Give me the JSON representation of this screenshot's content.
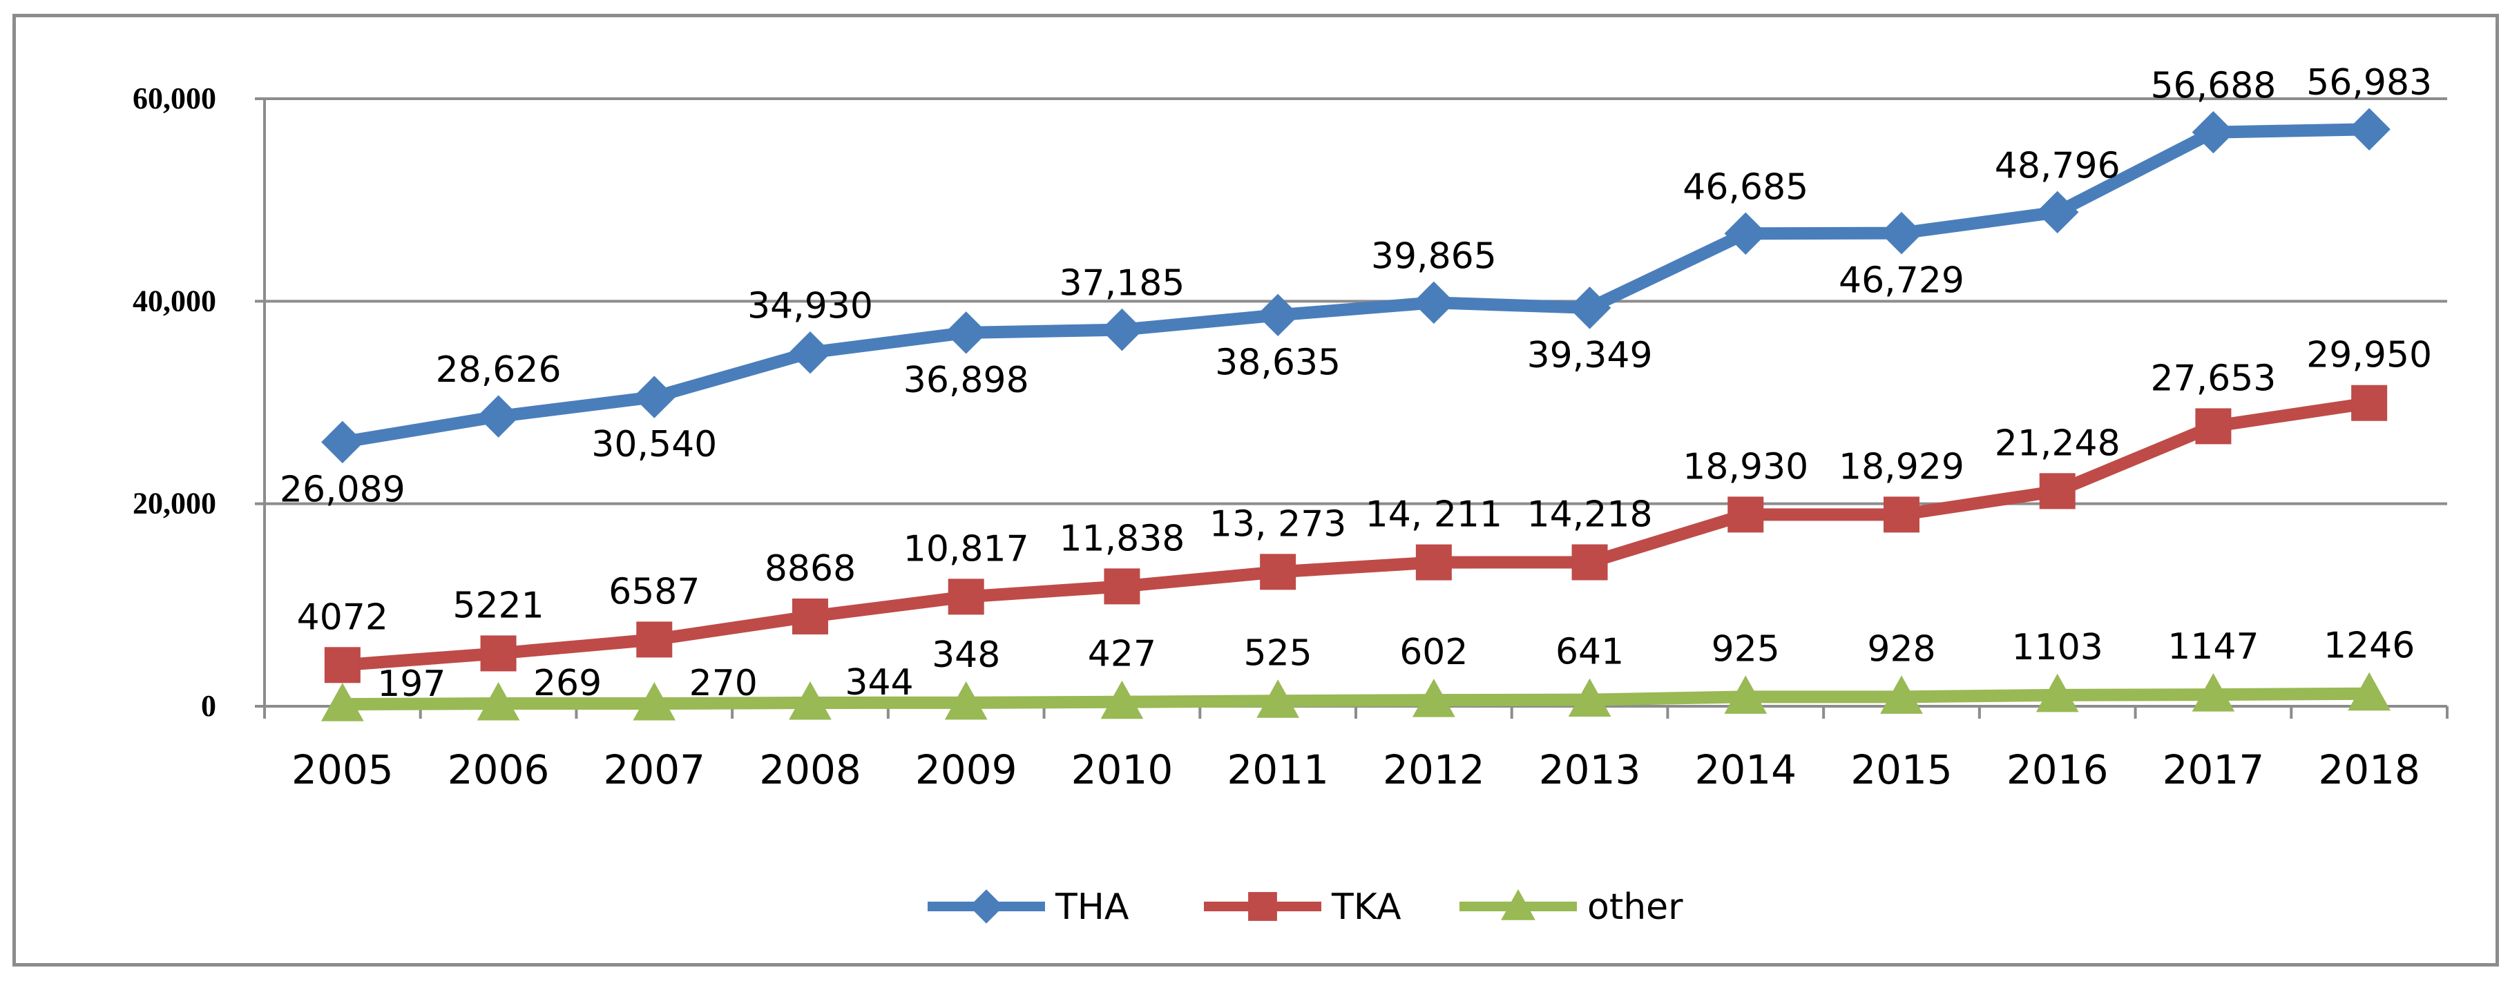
{
  "chart_data": {
    "type": "line",
    "title": "",
    "xlabel": "",
    "ylabel": "",
    "ylim": [
      0,
      60000
    ],
    "yticks": [
      0,
      20000,
      40000,
      60000
    ],
    "ytick_labels": [
      "0",
      "20,000",
      "40,000",
      "60,000"
    ],
    "categories": [
      "2005",
      "2006",
      "2007",
      "2008",
      "2009",
      "2010",
      "2011",
      "2012",
      "2013",
      "2014",
      "2015",
      "2016",
      "2017",
      "2018"
    ],
    "grid": true,
    "legend_position": "bottom",
    "series": [
      {
        "name": "THA",
        "color": "#4a7ebb",
        "marker": "diamond",
        "values": [
          26089,
          28626,
          30540,
          34930,
          36898,
          37185,
          38635,
          39865,
          39349,
          46685,
          46729,
          48796,
          56688,
          56983
        ],
        "labels": [
          "26,089",
          "28,626",
          "30,540",
          "34,930",
          "36,898",
          "37,185",
          "38,635",
          "39,865",
          "39,349",
          "46,685",
          "46,729",
          "48,796",
          "56,688",
          "56,983"
        ]
      },
      {
        "name": "TKA",
        "color": "#be4b48",
        "marker": "square",
        "values": [
          4072,
          5221,
          6587,
          8868,
          10817,
          11838,
          13273,
          14211,
          14218,
          18930,
          18929,
          21248,
          27653,
          29950
        ],
        "labels": [
          "4072",
          "5221",
          "6587",
          "8868",
          "10,817",
          "11,838",
          "13, 273",
          "14, 211",
          "14,218",
          "18,930",
          "18,929",
          "21,248",
          "27,653",
          "29,950"
        ]
      },
      {
        "name": "other",
        "color": "#98b954",
        "marker": "triangle",
        "values": [
          197,
          269,
          270,
          344,
          348,
          427,
          525,
          602,
          641,
          925,
          928,
          1103,
          1147,
          1246
        ],
        "labels": [
          "197",
          "269",
          "270",
          "344",
          "348",
          "427",
          "525",
          "602",
          "641",
          "925",
          "928",
          "1103",
          "1147",
          "1246"
        ]
      }
    ]
  }
}
